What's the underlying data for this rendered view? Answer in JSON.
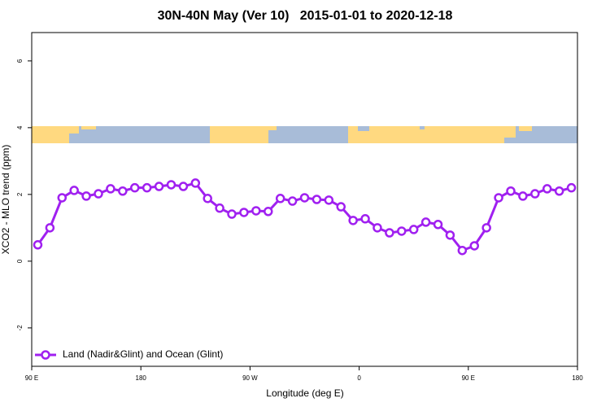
{
  "chart_data": {
    "type": "line",
    "title": "30N-40N May (Ver 10)   2015-01-01 to 2020-12-18",
    "x_label": "Longitude (deg E)",
    "y_label": "XCO2 - MLO trend (ppm)",
    "x": [
      95,
      105,
      115,
      125,
      135,
      145,
      155,
      165,
      175,
      185,
      195,
      205,
      215,
      225,
      235,
      245,
      255,
      265,
      275,
      285,
      295,
      305,
      315,
      325,
      335,
      345,
      355,
      365,
      375,
      385,
      395,
      405,
      415,
      425,
      435,
      445,
      455,
      465,
      475,
      485,
      495,
      505,
      515,
      525,
      535
    ],
    "series": [
      {
        "name": "Land (Nadir&Glint) and Ocean (Glint)",
        "color": "#a020f0",
        "values": [
          0.49,
          1.0,
          1.9,
          2.12,
          1.95,
          2.02,
          2.17,
          2.1,
          2.2,
          2.2,
          2.24,
          2.29,
          2.24,
          2.34,
          1.88,
          1.59,
          1.41,
          1.46,
          1.51,
          1.49,
          1.88,
          1.8,
          1.9,
          1.85,
          1.83,
          1.63,
          1.22,
          1.27,
          1.0,
          0.85,
          0.9,
          0.95,
          1.17,
          1.1,
          0.78,
          0.32,
          0.46,
          1.0,
          1.9,
          2.1,
          1.95,
          2.02,
          2.17,
          2.1,
          2.2
        ]
      }
    ],
    "xlim": [
      90,
      540
    ],
    "xticks": [
      {
        "value": 90,
        "label": "90 E"
      },
      180,
      {
        "value": 270,
        "label": "90 W"
      },
      {
        "value": 360,
        "label": "0"
      },
      {
        "value": 450,
        "label": "90 E"
      },
      {
        "value": 540,
        "label": "180"
      }
    ],
    "ylim": [
      -3.15,
      6.85
    ],
    "yticks": [
      -2,
      0,
      2,
      4,
      6
    ],
    "grid": false,
    "legend": "bottom-left"
  }
}
